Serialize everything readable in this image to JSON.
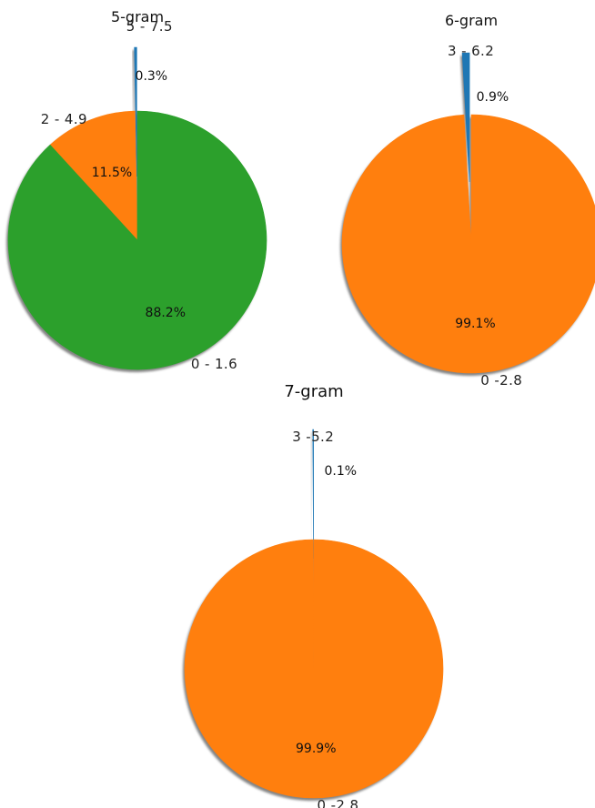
{
  "chart_data": [
    {
      "type": "pie",
      "title": "5-gram",
      "start_angle_deg": 90,
      "direction": "counterclockwise",
      "shadow": true,
      "slices": [
        {
          "label": "5 - 7.5",
          "value": 0.3,
          "pct_label": "0.3%",
          "color": "#1f77b4",
          "exploded": true
        },
        {
          "label": "2 - 4.9",
          "value": 11.5,
          "pct_label": "11.5%",
          "color": "#ff7f0e",
          "exploded": false
        },
        {
          "label": "0 - 1.6",
          "value": 88.2,
          "pct_label": "88.2%",
          "color": "#2ca02c",
          "exploded": false
        }
      ]
    },
    {
      "type": "pie",
      "title": "6-gram",
      "start_angle_deg": 90,
      "direction": "counterclockwise",
      "shadow": true,
      "slices": [
        {
          "label": "3 - 6.2",
          "value": 0.9,
          "pct_label": "0.9%",
          "color": "#1f77b4",
          "exploded": true
        },
        {
          "label": "0 -2.8",
          "value": 99.1,
          "pct_label": "99.1%",
          "color": "#ff7f0e",
          "exploded": false
        }
      ]
    },
    {
      "type": "pie",
      "title": "7-gram",
      "start_angle_deg": 90,
      "direction": "counterclockwise",
      "shadow": true,
      "slices": [
        {
          "label": "3 -5.2",
          "value": 0.1,
          "pct_label": "0.1%",
          "color": "#1f77b4",
          "exploded": true
        },
        {
          "label": "0 -2.8",
          "value": 99.9,
          "pct_label": "99.9%",
          "color": "#ff7f0e",
          "exploded": false
        }
      ]
    }
  ]
}
